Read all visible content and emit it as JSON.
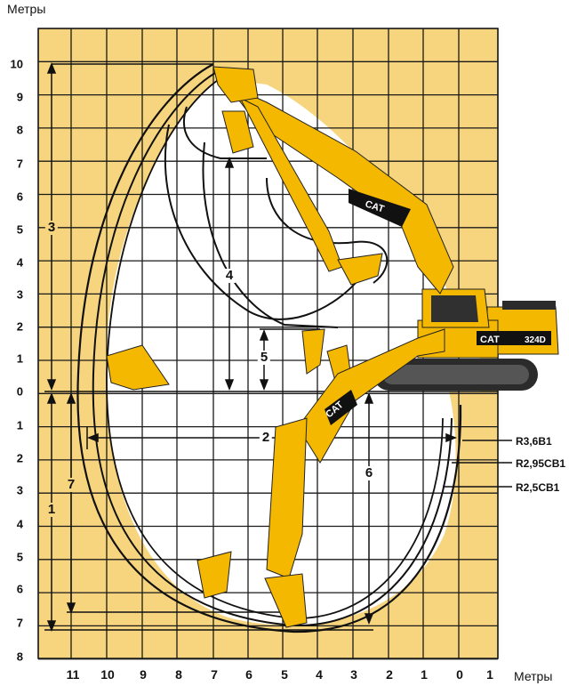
{
  "axis": {
    "y_title": "Метры",
    "x_title": "Метры",
    "y_labels": [
      "10",
      "9",
      "8",
      "7",
      "6",
      "5",
      "4",
      "3",
      "2",
      "1",
      "0",
      "1",
      "2",
      "3",
      "4",
      "5",
      "6",
      "7",
      "8"
    ],
    "x_labels": [
      "11",
      "10",
      "9",
      "8",
      "7",
      "6",
      "5",
      "4",
      "3",
      "2",
      "1",
      "0",
      "1"
    ]
  },
  "dimensions": {
    "d1": "1",
    "d2": "2",
    "d3": "3",
    "d4": "4",
    "d5": "5",
    "d6": "6",
    "d7": "7"
  },
  "reach_labels": {
    "r1": "R3,6B1",
    "r2": "R2,95CB1",
    "r3": "R2,5CB1"
  },
  "branding": {
    "boom_logo": "CAT",
    "body_logo": "CAT",
    "model": "324D"
  },
  "colors": {
    "grid_bg": "#f7d57e",
    "grid_line": "#1a1a1a",
    "machine": "#f5b800",
    "envelope": "#111111",
    "track": "#2b2b2b"
  }
}
